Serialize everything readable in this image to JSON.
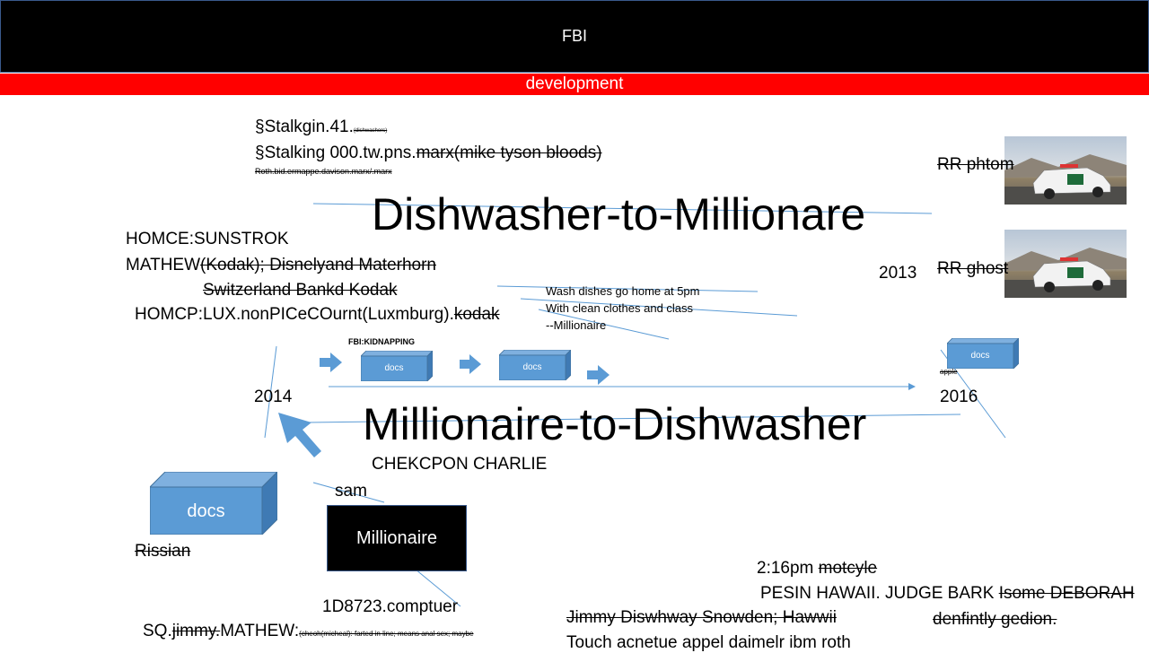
{
  "header": {
    "title": "FBI",
    "subtitle": "development"
  },
  "notes": {
    "stalking1_main": "§Stalkgin.41.",
    "stalking1_small": "(dishwashers)",
    "stalking2_main": "§Stalking 000.tw.pns.",
    "stalking2_strike": "marx(mike tyson bloods)",
    "stalking3": "Roth.bid.ermappe.davison.marx/.marx",
    "homce": "HOMCE:SUNSTROK",
    "mathew_main": "MATHEW",
    "mathew_strike": "(Kodak); Disnelyand Materhorn",
    "switzerland": "Switzerland Bankd Kodak",
    "homcp_main": "HOMCP:LUX.nonPICeCOurnt(Luxmburg).",
    "homcp_strike": "kodak",
    "wash1": "Wash dishes go home at 5pm",
    "wash2": "With clean clothes and class",
    "wash3": "--Millionaire",
    "kidnapping": "FBI:KIDNAPPING",
    "checkpoint": "CHEKCPON CHARLIE",
    "sam": "sam",
    "rissian": "Rissian",
    "computer": "1D8723.comptuer",
    "sq_main_a": "SQ.",
    "sq_strike": "jimmy.",
    "sq_main_b": "MATHEW:",
    "sq_small": "(cheoh(micheal): farted in line; means anal sex; maybe",
    "time_main": "2:16pm ",
    "time_strike": "motcyle",
    "pesin_main": "PESIN HAWAII. JUDGE BARK ",
    "pesin_strike": "Isome DEBORAH",
    "jimmy": "Jimmy Diswhway Snowden;  Hawwii",
    "denfintly": "denfintly gedion.",
    "touch": "Touch acnetue appel daimelr ibm roth",
    "apple": "apple"
  },
  "headlines": {
    "top": "Dishwasher-to-Millionare",
    "bottom": "Millionaire-to-Dishwasher"
  },
  "years": {
    "y2013": "2013",
    "y2014": "2014",
    "y2016": "2016"
  },
  "cars": {
    "phantom_label": "RR phtom",
    "ghost_label": "RR ghost"
  },
  "boxes": {
    "docs_label": "docs",
    "millionaire_label": "Millionaire"
  },
  "colors": {
    "accent_blue": "#5b9bd5",
    "title_bg": "#000000",
    "subtitle_bg": "#ff0000"
  }
}
